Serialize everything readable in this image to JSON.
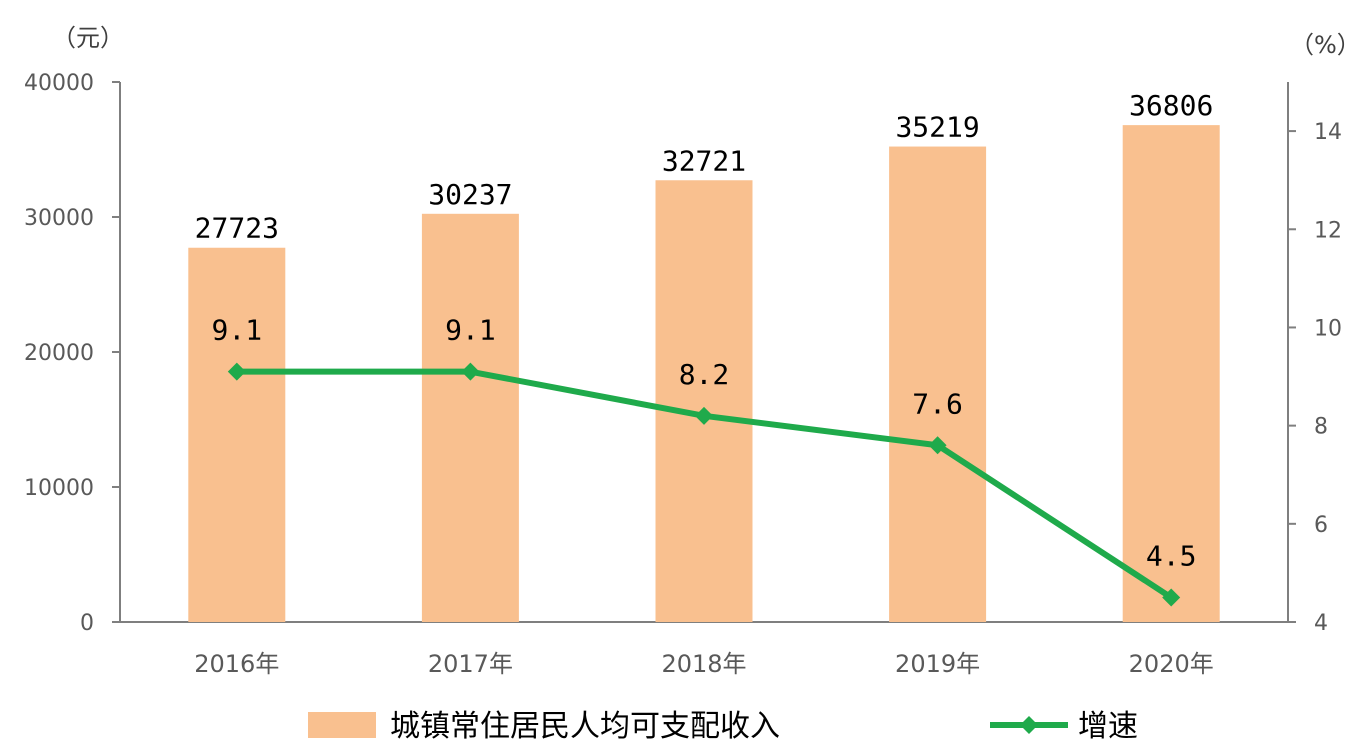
{
  "chart_data": {
    "type": "bar",
    "categories": [
      "2016年",
      "2017年",
      "2018年",
      "2019年",
      "2020年"
    ],
    "series": [
      {
        "name": "城镇常住居民人均可支配收入",
        "type": "bar",
        "axis": "left",
        "values": [
          27723,
          30237,
          32721,
          35219,
          36806
        ],
        "labels": [
          "27723",
          "30237",
          "32721",
          "35219",
          "36806"
        ],
        "color": "#F9C08F"
      },
      {
        "name": "增速",
        "type": "line",
        "axis": "right",
        "values": [
          9.1,
          9.1,
          8.2,
          7.6,
          4.5
        ],
        "labels": [
          "9.1",
          "9.1",
          "8.2",
          "7.6",
          "4.5"
        ],
        "color": "#1FAA4B"
      }
    ],
    "left_axis": {
      "unit": "（元）",
      "ylim": [
        0,
        40000
      ],
      "ticks": [
        "0",
        "10000",
        "20000",
        "30000",
        "40000"
      ]
    },
    "right_axis": {
      "unit": "（%）",
      "ylim": [
        4,
        15
      ],
      "ticks": [
        "4",
        "6",
        "8",
        "10",
        "12",
        "14"
      ]
    },
    "legend_position": "bottom",
    "grid": false
  }
}
